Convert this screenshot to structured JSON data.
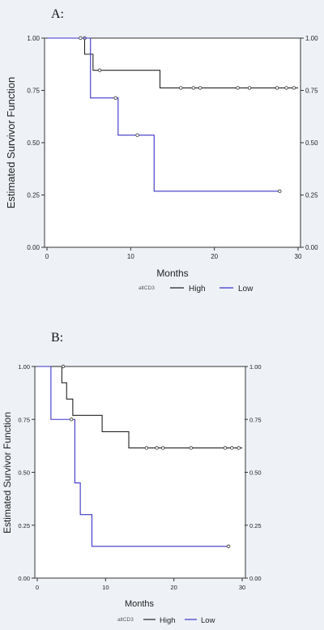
{
  "chart_data": [
    {
      "type": "line",
      "panel_label": "A:",
      "xlabel": "Months",
      "ylabel": "Estimated Survivor Function",
      "xlim": [
        0,
        30
      ],
      "ylim": [
        0,
        1
      ],
      "x_ticks": [
        "0",
        "10",
        "20",
        "30"
      ],
      "y_ticks": [
        "0.00",
        "0.25",
        "0.50",
        "0.75",
        "1.00"
      ],
      "legend_title": "altCD3",
      "legend_placement": "bottom",
      "series": [
        {
          "name": "High",
          "color": "#222222",
          "steps": [
            [
              0,
              1.0
            ],
            [
              4.5,
              1.0
            ],
            [
              4.5,
              0.923
            ],
            [
              5.5,
              0.923
            ],
            [
              5.5,
              0.846
            ],
            [
              13.5,
              0.846
            ],
            [
              13.5,
              0.762
            ],
            [
              30,
              0.762
            ]
          ],
          "censored": [
            [
              4.5,
              1.0
            ],
            [
              6.3,
              0.846
            ],
            [
              16.0,
              0.762
            ],
            [
              17.5,
              0.762
            ],
            [
              18.3,
              0.762
            ],
            [
              22.8,
              0.762
            ],
            [
              24.2,
              0.762
            ],
            [
              27.5,
              0.762
            ],
            [
              28.6,
              0.762
            ],
            [
              29.5,
              0.762
            ]
          ]
        },
        {
          "name": "Low",
          "color": "#3a33c8",
          "steps": [
            [
              0,
              1.0
            ],
            [
              5.2,
              1.0
            ],
            [
              5.2,
              0.714
            ],
            [
              8.5,
              0.714
            ],
            [
              8.5,
              0.536
            ],
            [
              12.8,
              0.536
            ],
            [
              12.8,
              0.268
            ],
            [
              28,
              0.268
            ]
          ],
          "censored": [
            [
              4.0,
              1.0
            ],
            [
              8.2,
              0.714
            ],
            [
              10.8,
              0.536
            ],
            [
              27.8,
              0.268
            ]
          ]
        }
      ]
    },
    {
      "type": "line",
      "panel_label": "B:",
      "xlabel": "Months",
      "ylabel": "Estimated Survivor Function",
      "xlim": [
        0,
        30
      ],
      "ylim": [
        0,
        1
      ],
      "x_ticks": [
        "0",
        "10",
        "20",
        "30"
      ],
      "y_ticks": [
        "0.00",
        "0.25",
        "0.50",
        "0.75",
        "1.00"
      ],
      "legend_title": "altCD3",
      "legend_placement": "bottom",
      "series": [
        {
          "name": "High",
          "color": "#222222",
          "steps": [
            [
              0,
              1.0
            ],
            [
              3.6,
              1.0
            ],
            [
              3.6,
              0.923
            ],
            [
              4.3,
              0.923
            ],
            [
              4.3,
              0.846
            ],
            [
              5.2,
              0.846
            ],
            [
              5.2,
              0.769
            ],
            [
              9.5,
              0.769
            ],
            [
              9.5,
              0.692
            ],
            [
              13.4,
              0.692
            ],
            [
              13.4,
              0.615
            ],
            [
              30,
              0.615
            ]
          ],
          "censored": [
            [
              3.8,
              1.0
            ],
            [
              16.0,
              0.615
            ],
            [
              17.5,
              0.615
            ],
            [
              18.4,
              0.615
            ],
            [
              22.5,
              0.615
            ],
            [
              27.5,
              0.615
            ],
            [
              28.5,
              0.615
            ],
            [
              29.5,
              0.615
            ]
          ]
        },
        {
          "name": "Low",
          "color": "#3a33c8",
          "steps": [
            [
              0,
              1.0
            ],
            [
              2.0,
              1.0
            ],
            [
              2.0,
              0.75
            ],
            [
              5.5,
              0.75
            ],
            [
              5.5,
              0.45
            ],
            [
              6.3,
              0.45
            ],
            [
              6.3,
              0.3
            ],
            [
              8.0,
              0.3
            ],
            [
              8.0,
              0.15
            ],
            [
              28,
              0.15
            ]
          ],
          "censored": [
            [
              5.0,
              0.75
            ],
            [
              28.0,
              0.15
            ]
          ]
        }
      ]
    }
  ]
}
